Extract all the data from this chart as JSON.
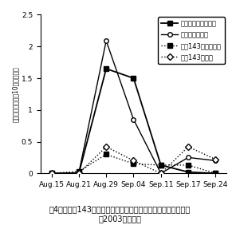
{
  "x_labels": [
    "Aug.15",
    "Aug.21",
    "Aug.29",
    "Sep.04",
    "Sep.11",
    "Sep.17",
    "Sep.24"
  ],
  "x_positions": [
    0,
    1,
    2,
    3,
    4,
    5,
    6
  ],
  "series": {
    "fukuyutaka_normal": {
      "label": "フクユタカ普通期値",
      "values": [
        0,
        0,
        1.65,
        1.5,
        0.13,
        0.02,
        0.0
      ],
      "color": "#000000",
      "linestyle": "-",
      "marker": "s",
      "markersize": 4,
      "linewidth": 1.3
    },
    "fukuyutaka_late": {
      "label": "フクユタカ遅値",
      "values": [
        0,
        0.01,
        2.09,
        0.85,
        0.0,
        0.25,
        0.2
      ],
      "color": "#000000",
      "linestyle": "-",
      "marker": "o",
      "markersize": 4,
      "linewidth": 1.0,
      "markerfacecolor": "white"
    },
    "kyushu143_normal": {
      "label": "九州143号普通期値",
      "values": [
        0,
        0.03,
        0.3,
        0.15,
        0.13,
        0.13,
        0.0
      ],
      "color": "#000000",
      "linestyle": ":",
      "marker": "s",
      "markersize": 4,
      "linewidth": 1.0
    },
    "kyushu143_late": {
      "label": "九州143号遅値",
      "values": [
        0,
        0.0,
        0.42,
        0.2,
        0.0,
        0.42,
        0.22
      ],
      "color": "#000000",
      "linestyle": ":",
      "marker": "D",
      "markersize": 4,
      "linewidth": 1.0,
      "markerfacecolor": "white"
    }
  },
  "ylim": [
    0,
    2.5
  ],
  "yticks": [
    0,
    0.5,
    1.0,
    1.5,
    2.0,
    2.5
  ],
  "ylabel": "孵化幼虫集団数（10㎡当たり）",
  "caption_line1": "围4．　九州143号とフクユタカにおける孵化幼虫集団数の推移",
  "caption_line2": "（2003年の例）",
  "legend_fontsize": 6.0,
  "axis_fontsize": 6.5,
  "ylabel_fontsize": 5.5,
  "caption_fontsize": 7.0
}
